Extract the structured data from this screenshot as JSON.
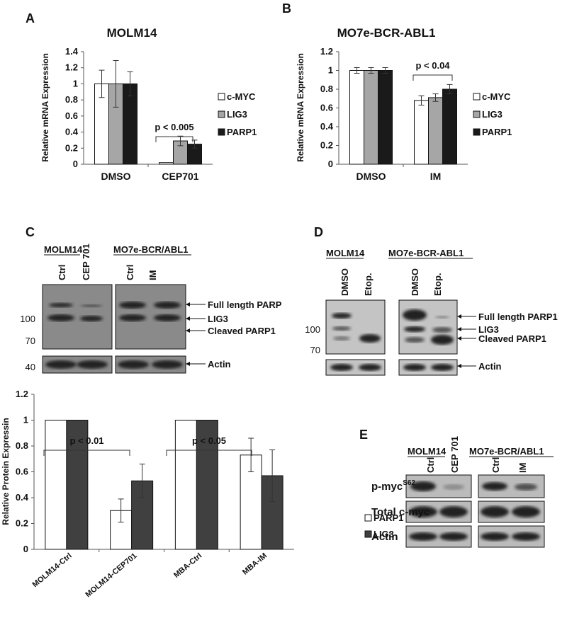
{
  "chart_data": [
    {
      "type": "bar",
      "panel": "A",
      "title": "MOLM14",
      "ylabel": "Relative mRNA Expression",
      "categories": [
        "DMSO",
        "CEP701"
      ],
      "series": [
        {
          "name": "c-MYC",
          "color": "#ffffff",
          "values": [
            1,
            0.02
          ],
          "errors": [
            0.17,
            0
          ]
        },
        {
          "name": "LIG3",
          "color": "#a6a6a6",
          "values": [
            1,
            0.29
          ],
          "errors": [
            0.29,
            0.06
          ]
        },
        {
          "name": "PARP1",
          "color": "#1a1a1a",
          "values": [
            1,
            0.25
          ],
          "errors": [
            0.15,
            0.05
          ]
        }
      ],
      "ylim": [
        0,
        1.4
      ],
      "yticks": [
        0,
        0.2,
        0.4,
        0.6,
        0.8,
        1,
        1.2,
        1.4
      ],
      "annotations": [
        "p < 0.005"
      ]
    },
    {
      "type": "bar",
      "panel": "B",
      "title": "MO7e-BCR-ABL1",
      "ylabel": "Relative mRNA Expression",
      "categories": [
        "DMSO",
        "IM"
      ],
      "series": [
        {
          "name": "c-MYC",
          "color": "#ffffff",
          "values": [
            1,
            0.68
          ],
          "errors": [
            0.03,
            0.05
          ]
        },
        {
          "name": "LIG3",
          "color": "#a6a6a6",
          "values": [
            1,
            0.71
          ],
          "errors": [
            0.03,
            0.04
          ]
        },
        {
          "name": "PARP1",
          "color": "#1a1a1a",
          "values": [
            1,
            0.8
          ],
          "errors": [
            0.03,
            0.05
          ]
        }
      ],
      "ylim": [
        0,
        1.2
      ],
      "yticks": [
        0,
        0.2,
        0.4,
        0.6,
        0.8,
        1,
        1.2
      ],
      "annotations": [
        "p < 0.04"
      ]
    },
    {
      "type": "bar",
      "ylabel": "Relative Protein Expressin",
      "categories": [
        "MOLM14-Ctrl",
        "MOLM14-CEP701",
        "MBA-Ctrl",
        "MBA-IM"
      ],
      "series": [
        {
          "name": "PARP1",
          "color": "#ffffff",
          "values": [
            1,
            0.3,
            1,
            0.73
          ],
          "errors": [
            0,
            0.09,
            0,
            0.13
          ]
        },
        {
          "name": "LIG3",
          "color": "#404040",
          "values": [
            1,
            0.53,
            1,
            0.57
          ],
          "errors": [
            0,
            0.13,
            0,
            0.2
          ]
        }
      ],
      "ylim": [
        0,
        1.2
      ],
      "yticks": [
        0,
        0.2,
        0.4,
        0.6,
        0.8,
        1,
        1.2
      ],
      "annotations": [
        "p < 0.01",
        "p < 0.05"
      ]
    }
  ],
  "blots": {
    "c": {
      "panel": "C",
      "groups": [
        "MOLM14",
        "MO7e-BCR/ABL1"
      ],
      "lanes": [
        "Ctrl",
        "CEP 701",
        "Ctrl",
        "IM"
      ],
      "markers": [
        "100",
        "70",
        "40"
      ],
      "bands": [
        "Full length PARP",
        "LIG3",
        "Cleaved PARP1",
        "Actin"
      ]
    },
    "d": {
      "panel": "D",
      "groups": [
        "MOLM14",
        "MO7e-BCR-ABL1"
      ],
      "lanes": [
        "DMSO",
        "Etop.",
        "DMSO",
        "Etop."
      ],
      "markers": [
        "100",
        "70"
      ],
      "bands": [
        "Full length PARP1",
        "LIG3",
        "Cleaved PARP1",
        "Actin"
      ]
    },
    "e": {
      "panel": "E",
      "groups": [
        "MOLM14",
        "MO7e-BCR/ABL1"
      ],
      "lanes": [
        "Ctrl",
        "CEP 701",
        "Ctrl",
        "IM"
      ],
      "rows": [
        "p-myc",
        "Total c-myc",
        "Actin"
      ],
      "superscript": "S62"
    }
  }
}
